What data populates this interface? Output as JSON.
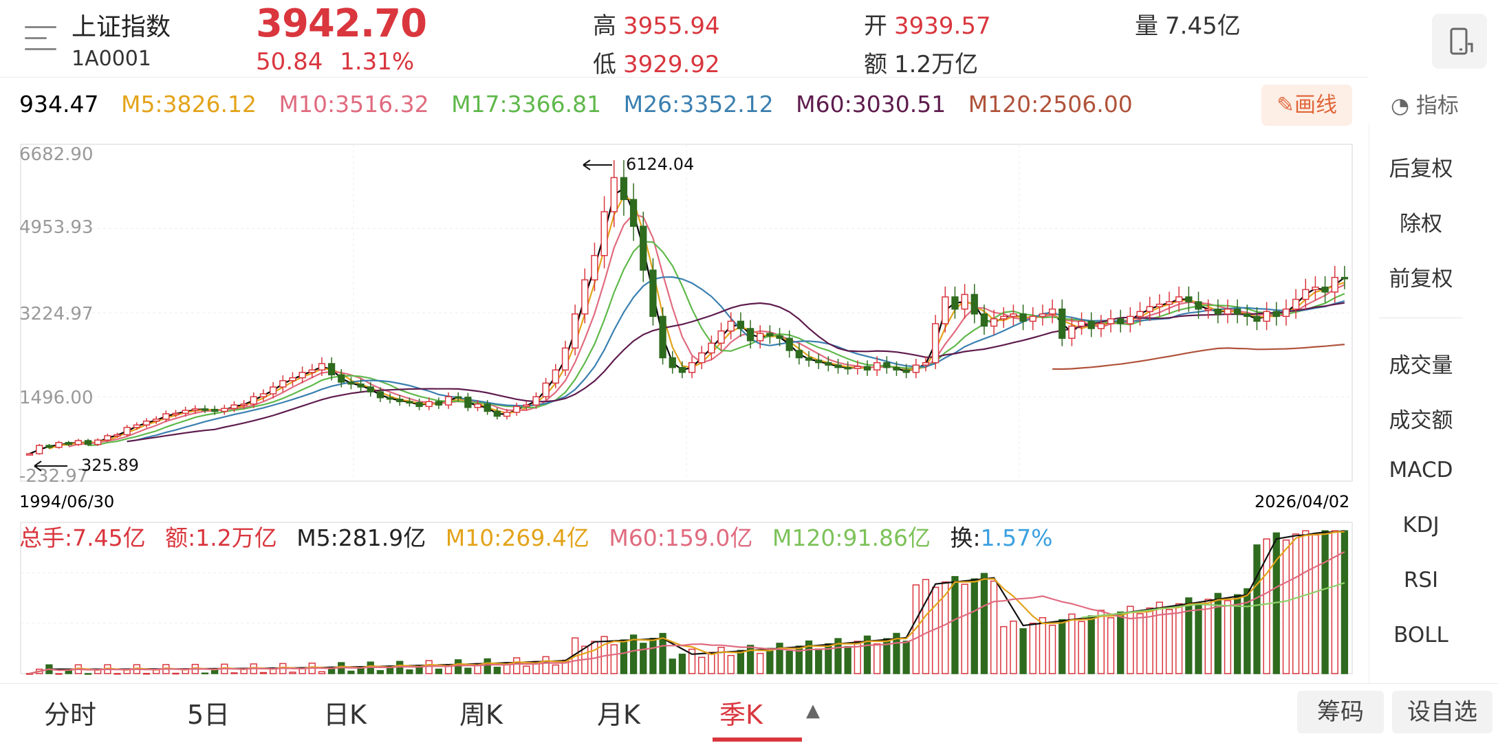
{
  "header": {
    "name": "上证指数",
    "code": "1A0001",
    "price": "3942.70",
    "change": "50.84",
    "change_pct": "1.31%",
    "high_label": "高",
    "high": "3955.94",
    "low_label": "低",
    "low": "3929.92",
    "open_label": "开",
    "open": "3939.57",
    "amount_label": "额",
    "amount": "1.2万亿",
    "volume_label": "量",
    "volume": "7.45亿"
  },
  "ma_legend": {
    "partial": "934.47",
    "m5": "M5:3826.12",
    "m10": "M10:3516.32",
    "m17": "M17:3366.81",
    "m26": "M26:3352.12",
    "m60": "M60:3030.51",
    "m120": "M120:2506.00"
  },
  "toolbar": {
    "draw_label": "✎画线",
    "indicator_label": "指标"
  },
  "right_panel": {
    "items": [
      "后复权",
      "除权",
      "前复权",
      "成交量",
      "成交额",
      "MACD",
      "KDJ",
      "RSI",
      "BOLL"
    ]
  },
  "volume_legend": {
    "total": "总手:7.45亿",
    "amount": "额:1.2万亿",
    "m5": "M5:281.9亿",
    "m10": "M10:269.4亿",
    "m60": "M60:159.0亿",
    "m120": "M120:91.86亿",
    "turnover_label": "换:",
    "turnover": "1.57%"
  },
  "tabs": [
    "分时",
    "5日",
    "日K",
    "周K",
    "月K",
    "季K"
  ],
  "bottom_buttons": {
    "chips": "筹码",
    "watchlist": "设自选"
  },
  "colors": {
    "up": "#d9363e",
    "down": "#2e6b1f",
    "m5": "#000000",
    "m10": "#e3a31a",
    "m17": "#e06b7f",
    "m26": "#5fb84a",
    "m60": "#3a7fb0",
    "m120": "#5e1b4d",
    "m250": "#b0523a"
  },
  "chart_data": {
    "type": "candlestick",
    "x_start": "1994/06/30",
    "x_end": "2026/04/02",
    "y_ticks": [
      "6682.90",
      "4953.93",
      "3224.97",
      "1496.00",
      "-232.97"
    ],
    "ylim": [
      -232.97,
      6682.9
    ],
    "annotations": {
      "max": "6124.04",
      "min": "325.89"
    },
    "closes": [
      330,
      500,
      460,
      560,
      520,
      600,
      520,
      610,
      700,
      720,
      870,
      920,
      1000,
      1040,
      1150,
      1160,
      1220,
      1250,
      1240,
      1200,
      1260,
      1330,
      1350,
      1500,
      1560,
      1700,
      1830,
      1890,
      2000,
      2050,
      2180,
      1950,
      1800,
      1760,
      1700,
      1600,
      1480,
      1450,
      1400,
      1380,
      1300,
      1400,
      1330,
      1500,
      1490,
      1280,
      1350,
      1200,
      1100,
      1180,
      1300,
      1330,
      1500,
      1780,
      2050,
      2500,
      3200,
      3900,
      4400,
      5300,
      6000,
      5550,
      5000,
      4100,
      3150,
      2300,
      2100,
      2000,
      2200,
      2400,
      2600,
      2850,
      3050,
      2900,
      2650,
      2800,
      2750,
      2700,
      2450,
      2300,
      2250,
      2200,
      2150,
      2100,
      2080,
      2120,
      2050,
      2200,
      2100,
      2050,
      2000,
      2150,
      2200,
      3000,
      3550,
      3300,
      3600,
      3200,
      2950,
      3100,
      3150,
      3200,
      3050,
      3150,
      3200,
      3300,
      2700,
      2950,
      3050,
      2900,
      3000,
      3100,
      3000,
      3150,
      3250,
      3350,
      3400,
      3450,
      3550,
      3450,
      3300,
      3300,
      3200,
      3300,
      3200,
      3150,
      3050,
      3250,
      3150,
      3300,
      3500,
      3700,
      3750,
      3650,
      3950,
      3943
    ],
    "volume_ma_values": {
      "M5": "281.9亿",
      "M10": "269.4亿",
      "M60": "159.0亿",
      "M120": "91.86亿"
    }
  }
}
